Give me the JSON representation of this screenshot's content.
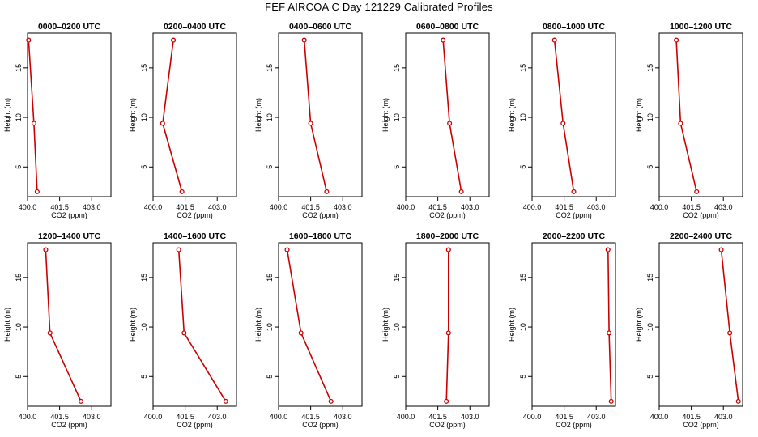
{
  "figure": {
    "title": "FEF AIRCOA C  Day 121229  Calibrated Profiles",
    "xlabel": "CO2 (ppm)",
    "ylabel": "Height (m)",
    "line_color": "#cc0000"
  },
  "chart_data": [
    {
      "type": "line",
      "title": "0000–0200 UTC",
      "xlim": [
        400,
        403.9
      ],
      "ylim": [
        2,
        18.5
      ],
      "xticks": [
        400.0,
        401.5,
        403.0
      ],
      "xtick_labels": [
        "400.0",
        "401.5",
        "403.0"
      ],
      "yticks": [
        5,
        10,
        15
      ],
      "ytick_labels": [
        "5",
        "10",
        "15"
      ],
      "xlabel": "CO2 (ppm)",
      "ylabel": "Height (m)",
      "series": [
        {
          "x": [
            400.05,
            400.3,
            400.45
          ],
          "y": [
            17.8,
            9.4,
            2.5
          ]
        }
      ]
    },
    {
      "type": "line",
      "title": "0200–0400 UTC",
      "xlim": [
        400,
        403.9
      ],
      "ylim": [
        2,
        18.5
      ],
      "xticks": [
        400.0,
        401.5,
        403.0
      ],
      "xtick_labels": [
        "400.0",
        "401.5",
        "403.0"
      ],
      "yticks": [
        5,
        10,
        15
      ],
      "ytick_labels": [
        "5",
        "10",
        "15"
      ],
      "xlabel": "CO2 (ppm)",
      "ylabel": "Height (m)",
      "series": [
        {
          "x": [
            400.95,
            400.45,
            401.35
          ],
          "y": [
            17.8,
            9.4,
            2.5
          ]
        }
      ]
    },
    {
      "type": "line",
      "title": "0400–0600 UTC",
      "xlim": [
        400,
        403.9
      ],
      "ylim": [
        2,
        18.5
      ],
      "xticks": [
        400.0,
        401.5,
        403.0
      ],
      "xtick_labels": [
        "400.0",
        "401.5",
        "403.0"
      ],
      "yticks": [
        5,
        10,
        15
      ],
      "ytick_labels": [
        "5",
        "10",
        "15"
      ],
      "xlabel": "CO2 (ppm)",
      "ylabel": "Height (m)",
      "series": [
        {
          "x": [
            401.2,
            401.5,
            402.25
          ],
          "y": [
            17.8,
            9.4,
            2.5
          ]
        }
      ]
    },
    {
      "type": "line",
      "title": "0600–0800 UTC",
      "xlim": [
        400,
        403.9
      ],
      "ylim": [
        2,
        18.5
      ],
      "xticks": [
        400.0,
        401.5,
        403.0
      ],
      "xtick_labels": [
        "400.0",
        "401.5",
        "403.0"
      ],
      "yticks": [
        5,
        10,
        15
      ],
      "ytick_labels": [
        "5",
        "10",
        "15"
      ],
      "xlabel": "CO2 (ppm)",
      "ylabel": "Height (m)",
      "series": [
        {
          "x": [
            401.75,
            402.05,
            402.6
          ],
          "y": [
            17.8,
            9.4,
            2.5
          ]
        }
      ]
    },
    {
      "type": "line",
      "title": "0800–1000 UTC",
      "xlim": [
        400,
        403.9
      ],
      "ylim": [
        2,
        18.5
      ],
      "xticks": [
        400.0,
        401.5,
        403.0
      ],
      "xtick_labels": [
        "400.0",
        "401.5",
        "403.0"
      ],
      "yticks": [
        5,
        10,
        15
      ],
      "ytick_labels": [
        "5",
        "10",
        "15"
      ],
      "xlabel": "CO2 (ppm)",
      "ylabel": "Height (m)",
      "series": [
        {
          "x": [
            401.05,
            401.45,
            401.95
          ],
          "y": [
            17.8,
            9.4,
            2.5
          ]
        }
      ]
    },
    {
      "type": "line",
      "title": "1000–1200 UTC",
      "xlim": [
        400,
        403.9
      ],
      "ylim": [
        2,
        18.5
      ],
      "xticks": [
        400.0,
        401.5,
        403.0
      ],
      "xtick_labels": [
        "400.0",
        "401.5",
        "403.0"
      ],
      "yticks": [
        5,
        10,
        15
      ],
      "ytick_labels": [
        "5",
        "10",
        "15"
      ],
      "xlabel": "CO2 (ppm)",
      "ylabel": "Height (m)",
      "series": [
        {
          "x": [
            400.8,
            401.0,
            401.75
          ],
          "y": [
            17.8,
            9.4,
            2.5
          ]
        }
      ]
    },
    {
      "type": "line",
      "title": "1200–1400 UTC",
      "xlim": [
        400,
        403.9
      ],
      "ylim": [
        2,
        18.5
      ],
      "xticks": [
        400.0,
        401.5,
        403.0
      ],
      "xtick_labels": [
        "400.0",
        "401.5",
        "403.0"
      ],
      "yticks": [
        5,
        10,
        15
      ],
      "ytick_labels": [
        "5",
        "10",
        "15"
      ],
      "xlabel": "CO2 (ppm)",
      "ylabel": "Height (m)",
      "series": [
        {
          "x": [
            400.85,
            401.05,
            402.5
          ],
          "y": [
            17.8,
            9.4,
            2.5
          ]
        }
      ]
    },
    {
      "type": "line",
      "title": "1400–1600 UTC",
      "xlim": [
        400,
        403.9
      ],
      "ylim": [
        2,
        18.5
      ],
      "xticks": [
        400.0,
        401.5,
        403.0
      ],
      "xtick_labels": [
        "400.0",
        "401.5",
        "403.0"
      ],
      "yticks": [
        5,
        10,
        15
      ],
      "ytick_labels": [
        "5",
        "10",
        "15"
      ],
      "xlabel": "CO2 (ppm)",
      "ylabel": "Height (m)",
      "series": [
        {
          "x": [
            401.2,
            401.45,
            403.4
          ],
          "y": [
            17.8,
            9.4,
            2.5
          ]
        }
      ]
    },
    {
      "type": "line",
      "title": "1600–1800 UTC",
      "xlim": [
        400,
        403.9
      ],
      "ylim": [
        2,
        18.5
      ],
      "xticks": [
        400.0,
        401.5,
        403.0
      ],
      "xtick_labels": [
        "400.0",
        "401.5",
        "403.0"
      ],
      "yticks": [
        5,
        10,
        15
      ],
      "ytick_labels": [
        "5",
        "10",
        "15"
      ],
      "xlabel": "CO2 (ppm)",
      "ylabel": "Height (m)",
      "series": [
        {
          "x": [
            400.4,
            401.05,
            402.45
          ],
          "y": [
            17.8,
            9.4,
            2.5
          ]
        }
      ]
    },
    {
      "type": "line",
      "title": "1800–2000 UTC",
      "xlim": [
        400,
        403.9
      ],
      "ylim": [
        2,
        18.5
      ],
      "xticks": [
        400.0,
        401.5,
        403.0
      ],
      "xtick_labels": [
        "400.0",
        "401.5",
        "403.0"
      ],
      "yticks": [
        5,
        10,
        15
      ],
      "ytick_labels": [
        "5",
        "10",
        "15"
      ],
      "xlabel": "CO2 (ppm)",
      "ylabel": "Height (m)",
      "series": [
        {
          "x": [
            402.0,
            402.0,
            401.9
          ],
          "y": [
            17.8,
            9.4,
            2.5
          ]
        }
      ]
    },
    {
      "type": "line",
      "title": "2000–2200 UTC",
      "xlim": [
        400,
        403.9
      ],
      "ylim": [
        2,
        18.5
      ],
      "xticks": [
        400.0,
        401.5,
        403.0
      ],
      "xtick_labels": [
        "400.0",
        "401.5",
        "403.0"
      ],
      "yticks": [
        5,
        10,
        15
      ],
      "ytick_labels": [
        "5",
        "10",
        "15"
      ],
      "xlabel": "CO2 (ppm)",
      "ylabel": "Height (m)",
      "series": [
        {
          "x": [
            403.55,
            403.6,
            403.7
          ],
          "y": [
            17.8,
            9.4,
            2.5
          ]
        }
      ]
    },
    {
      "type": "line",
      "title": "2200–2400 UTC",
      "xlim": [
        400,
        403.9
      ],
      "ylim": [
        2,
        18.5
      ],
      "xticks": [
        400.0,
        401.5,
        403.0
      ],
      "xtick_labels": [
        "400.0",
        "401.5",
        "403.0"
      ],
      "yticks": [
        5,
        10,
        15
      ],
      "ytick_labels": [
        "5",
        "10",
        "15"
      ],
      "xlabel": "CO2 (ppm)",
      "ylabel": "Height (m)",
      "series": [
        {
          "x": [
            402.9,
            403.3,
            403.7
          ],
          "y": [
            17.8,
            9.4,
            2.5
          ]
        }
      ]
    }
  ]
}
